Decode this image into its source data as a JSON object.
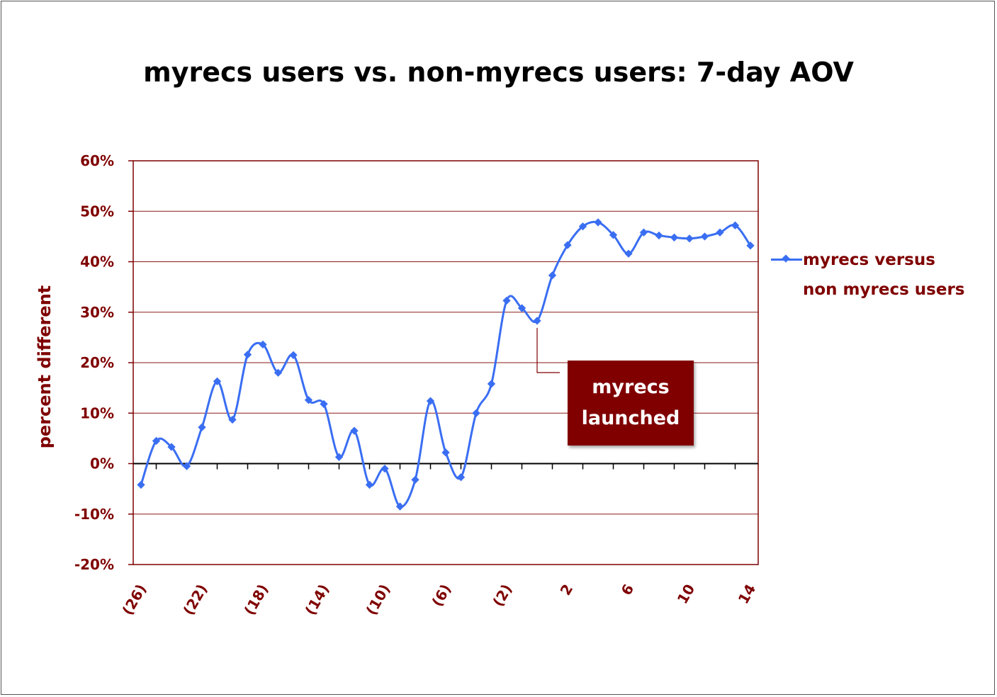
{
  "chart_data": {
    "type": "line",
    "title": "myrecs users vs. non-myrecs users: 7-day AOV",
    "ylabel": "percent different",
    "xlabel": "",
    "ylim": [
      -20,
      60
    ],
    "yticks": [
      -20,
      -10,
      0,
      10,
      20,
      30,
      40,
      50,
      60
    ],
    "ytick_labels": [
      "-20%",
      "-10%",
      "0%",
      "10%",
      "20%",
      "30%",
      "40%",
      "50%",
      "60%"
    ],
    "xlim": [
      -26,
      14
    ],
    "xticks": [
      -26,
      -22,
      -18,
      -14,
      -10,
      -6,
      -2,
      2,
      6,
      10,
      14
    ],
    "xtick_labels": [
      "(26)",
      "(22)",
      "(18)",
      "(14)",
      "(10)",
      "(6)",
      "(2)",
      "2",
      "6",
      "10",
      "14"
    ],
    "grid": true,
    "legend_position": "right",
    "series": [
      {
        "name": "myrecs versus non myrecs users",
        "color": "#3a6ef2",
        "x": [
          -26,
          -25,
          -24,
          -23,
          -22,
          -21,
          -20,
          -19,
          -18,
          -17,
          -16,
          -15,
          -14,
          -13,
          -12,
          -11,
          -10,
          -9,
          -8,
          -7,
          -6,
          -5,
          -4,
          -3,
          -2,
          -1,
          0,
          1,
          2,
          3,
          4,
          5,
          6,
          7,
          8,
          9,
          10,
          11,
          12,
          13,
          14
        ],
        "y": [
          -4.2,
          4.5,
          3.3,
          -0.5,
          7.2,
          16.3,
          8.7,
          21.6,
          23.6,
          18.0,
          21.5,
          12.6,
          11.8,
          1.3,
          6.5,
          -4.2,
          -1.0,
          -8.5,
          -3.2,
          12.4,
          2.2,
          -2.7,
          10.0,
          15.8,
          32.3,
          30.8,
          28.3,
          37.3,
          43.3,
          47.0,
          47.8,
          45.3,
          41.6,
          45.8,
          45.2,
          44.8,
          44.6,
          45.0,
          45.8,
          47.2,
          43.2
        ]
      }
    ],
    "annotation": {
      "text_lines": [
        "myrecs",
        "launched"
      ],
      "x": 0,
      "fill": "#800000"
    },
    "colors": {
      "axis": "#7f0000",
      "grid": "#8b1a1a",
      "tick_text": "#7f0000",
      "line": "#3a6ef2"
    }
  }
}
